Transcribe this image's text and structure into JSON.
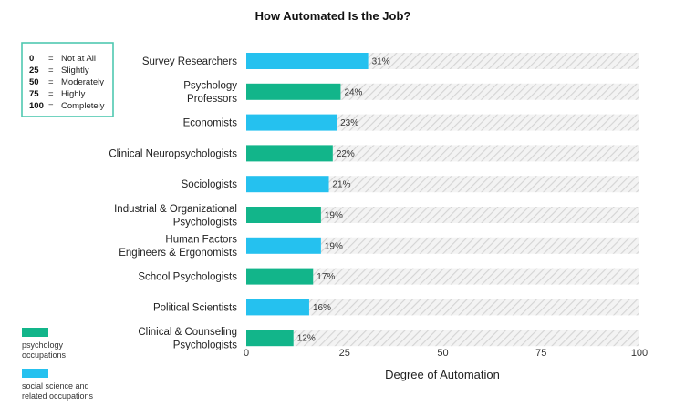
{
  "chart_data": {
    "type": "bar",
    "orientation": "horizontal",
    "title": "How Automated Is the Job?",
    "xlabel": "Degree of Automation",
    "ylabel": "",
    "xlim": [
      0,
      100
    ],
    "xticks": [
      0,
      25,
      50,
      75,
      100
    ],
    "grid": false,
    "categories": [
      [
        "Survey Researchers"
      ],
      [
        "Psychology",
        "Professors"
      ],
      [
        "Economists"
      ],
      [
        "Clinical Neuropsychologists"
      ],
      [
        "Sociologists"
      ],
      [
        "Industrial & Organizational",
        "Psychologists"
      ],
      [
        "Human Factors",
        "Engineers & Ergonomists"
      ],
      [
        "School Psychologists"
      ],
      [
        "Political Scientists"
      ],
      [
        "Clinical & Counseling",
        "Psychologists"
      ]
    ],
    "values": [
      31,
      24,
      23,
      22,
      21,
      19,
      19,
      17,
      16,
      12
    ],
    "value_labels": [
      "31%",
      "24%",
      "23%",
      "22%",
      "21%",
      "19%",
      "19%",
      "17%",
      "16%",
      "12%"
    ],
    "groups": [
      "social",
      "psych",
      "social",
      "psych",
      "social",
      "psych",
      "social",
      "psych",
      "social",
      "psych"
    ],
    "legend": [
      {
        "key": "psych",
        "lines": [
          "psychology",
          "occupations"
        ],
        "color": "#12b58a"
      },
      {
        "key": "social",
        "lines": [
          "social science and",
          "related occupations"
        ],
        "color": "#25c1ef"
      }
    ],
    "legend_position": "bottom-left",
    "scale_key": [
      {
        "value": "0",
        "eq": "=",
        "label": "Not at All"
      },
      {
        "value": "25",
        "eq": "=",
        "label": "Slightly"
      },
      {
        "value": "50",
        "eq": "=",
        "label": "Moderately"
      },
      {
        "value": "75",
        "eq": "=",
        "label": "Highly"
      },
      {
        "value": "100",
        "eq": "=",
        "label": "Completely"
      }
    ],
    "scale_key_position": "top-left",
    "colors": {
      "psych": "#12b58a",
      "social": "#25c1ef",
      "remainder_fill": "#f1f1f1",
      "remainder_hatch": "#d6d6d6",
      "scale_key_border": "#4fc8b0"
    }
  }
}
